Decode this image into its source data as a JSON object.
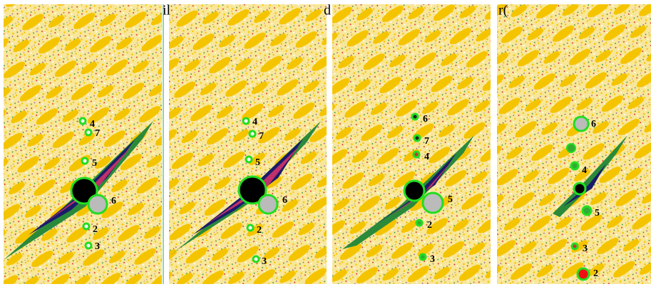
{
  "header": {
    "fragments": [
      "il",
      "d",
      "r("
    ]
  },
  "panels": [
    {
      "markers": [
        {
          "label": "4"
        },
        {
          "label": "7"
        },
        {
          "label": "5"
        },
        {
          "label": "6"
        },
        {
          "label": "2"
        },
        {
          "label": "3"
        }
      ]
    },
    {
      "markers": [
        {
          "label": "4"
        },
        {
          "label": "7"
        },
        {
          "label": "5"
        },
        {
          "label": "6"
        },
        {
          "label": "2"
        },
        {
          "label": "3"
        }
      ]
    },
    {
      "markers": [
        {
          "label": "6"
        },
        {
          "label": "7"
        },
        {
          "label": "4"
        },
        {
          "label": "5"
        },
        {
          "label": "2"
        },
        {
          "label": "3"
        }
      ]
    },
    {
      "markers": [
        {
          "label": "6"
        },
        {
          "label": "4"
        },
        {
          "label": "5"
        },
        {
          "label": "3"
        },
        {
          "label": "2"
        }
      ]
    }
  ]
}
